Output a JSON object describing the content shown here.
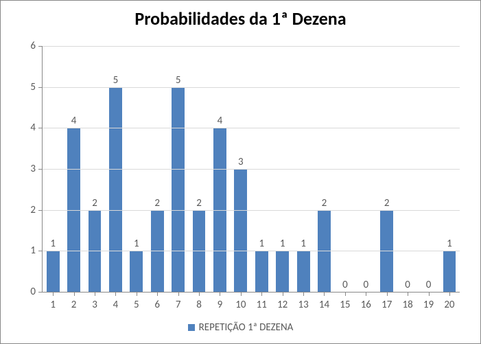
{
  "chart": {
    "type": "bar",
    "title": "Probabilidades da 1ª Dezena",
    "title_fontsize": 26,
    "title_fontweight": "bold",
    "title_color": "#000000",
    "categories": [
      "1",
      "2",
      "3",
      "4",
      "5",
      "6",
      "7",
      "8",
      "9",
      "10",
      "11",
      "12",
      "13",
      "14",
      "15",
      "16",
      "17",
      "18",
      "19",
      "20"
    ],
    "values": [
      1,
      4,
      2,
      5,
      1,
      2,
      5,
      2,
      4,
      3,
      1,
      1,
      1,
      2,
      0,
      0,
      2,
      0,
      0,
      1
    ],
    "bar_color": "#4f81bd",
    "data_label_color": "#595959",
    "data_label_fontsize": 15,
    "axis_label_color": "#595959",
    "axis_label_fontsize": 15,
    "axis_line_color": "#888888",
    "grid_color": "#d9d9d9",
    "background_color": "#ffffff",
    "border_color": "#888888",
    "ylim": [
      0,
      6
    ],
    "ytick_step": 1,
    "bar_width": 0.62,
    "legend": {
      "label": "REPETIÇÃO 1ª DEZENA",
      "swatch_color": "#4f81bd",
      "text_color": "#595959",
      "fontsize": 15
    }
  }
}
